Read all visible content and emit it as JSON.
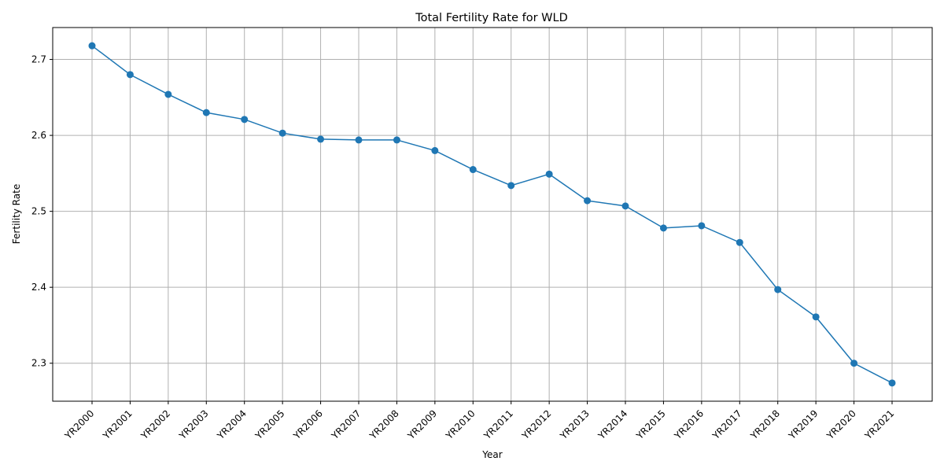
{
  "chart_data": {
    "type": "line",
    "title": "Total Fertility Rate for WLD",
    "xlabel": "Year",
    "ylabel": "Fertility Rate",
    "categories": [
      "YR2000",
      "YR2001",
      "YR2002",
      "YR2003",
      "YR2004",
      "YR2005",
      "YR2006",
      "YR2007",
      "YR2008",
      "YR2009",
      "YR2010",
      "YR2011",
      "YR2012",
      "YR2013",
      "YR2014",
      "YR2015",
      "YR2016",
      "YR2017",
      "YR2018",
      "YR2019",
      "YR2020",
      "YR2021"
    ],
    "values": [
      2.718,
      2.68,
      2.654,
      2.63,
      2.621,
      2.603,
      2.595,
      2.594,
      2.594,
      2.58,
      2.555,
      2.534,
      2.549,
      2.514,
      2.507,
      2.478,
      2.481,
      2.459,
      2.397,
      2.361,
      2.3,
      2.274
    ],
    "ylim": [
      2.25,
      2.742
    ],
    "yticks": [
      2.3,
      2.4,
      2.5,
      2.6,
      2.7
    ],
    "ytick_labels": [
      "2.3",
      "2.4",
      "2.5",
      "2.6",
      "2.7"
    ],
    "grid": true,
    "marker": "circle",
    "color": "#1f77b4"
  }
}
